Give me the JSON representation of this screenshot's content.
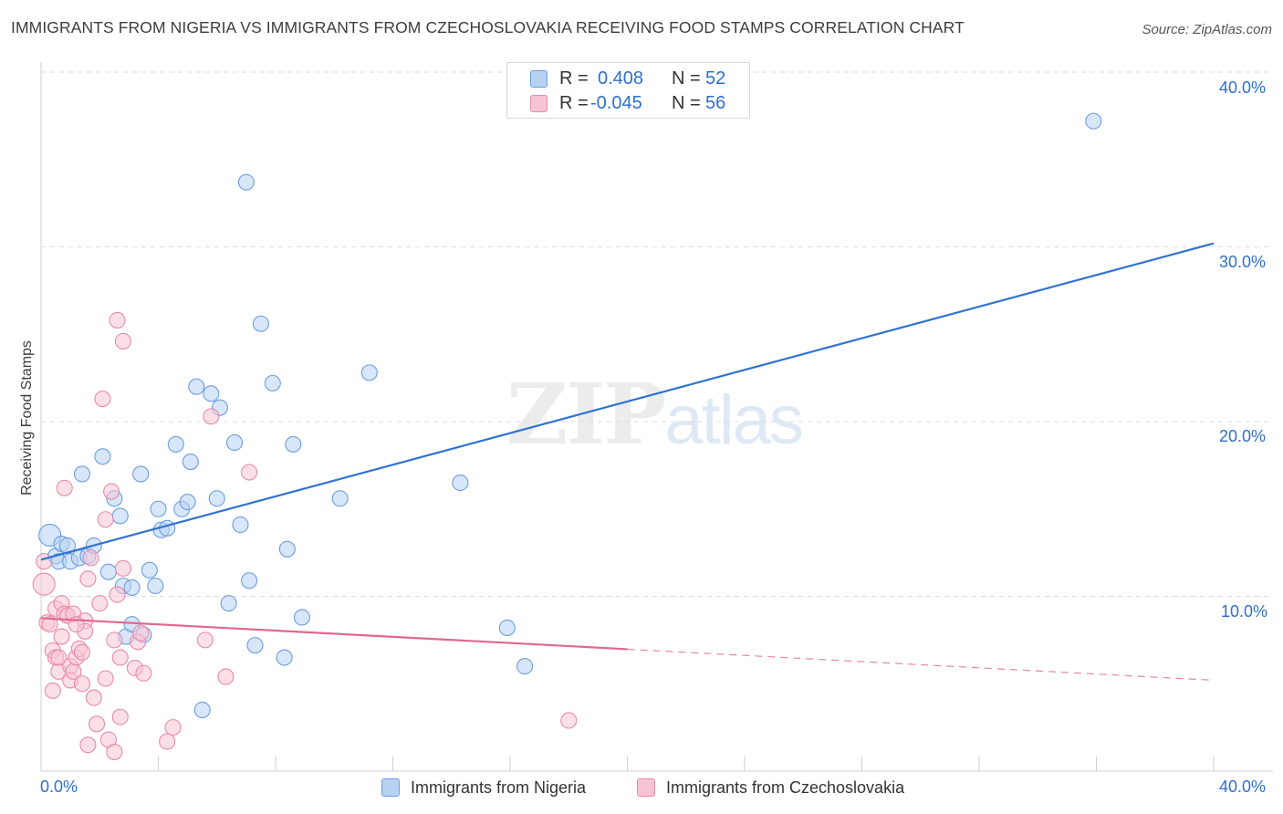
{
  "title": "IMMIGRANTS FROM NIGERIA VS IMMIGRANTS FROM CZECHOSLOVAKIA RECEIVING FOOD STAMPS CORRELATION CHART",
  "source": "Source: ZipAtlas.com",
  "watermark": {
    "zip": "ZIP",
    "atlas": "atlas"
  },
  "legend": {
    "r_label": "R =",
    "n_label": "N =",
    "rows": [
      {
        "r": "0.408",
        "n": "52"
      },
      {
        "r": "-0.045",
        "n": "56"
      }
    ]
  },
  "colors": {
    "nigeria_fill": "#b7d1f3",
    "nigeria_stroke": "#6b9de0",
    "nigeria_line": "#2f72d0",
    "czech_fill": "#f7c4d3",
    "czech_stroke": "#e88aa8",
    "czech_line": "#e0688f"
  },
  "chart_data": {
    "type": "scatter",
    "title": "IMMIGRANTS FROM NIGERIA VS IMMIGRANTS FROM CZECHOSLOVAKIA RECEIVING FOOD STAMPS CORRELATION CHART",
    "xlabel": "",
    "ylabel": "Receiving Food Stamps",
    "xlim": [
      0,
      40
    ],
    "ylim": [
      0,
      40
    ],
    "x_tick_labels": [
      "0.0%",
      "40.0%"
    ],
    "y_ticks": [
      10,
      20,
      30,
      40
    ],
    "y_tick_labels": [
      "10.0%",
      "20.0%",
      "30.0%",
      "40.0%"
    ],
    "legend_position": "top-center",
    "series": [
      {
        "name": "Immigrants from Nigeria",
        "r": 0.408,
        "n": 52,
        "trend": {
          "x": [
            0,
            40
          ],
          "y": [
            12.1,
            30.2
          ],
          "dashed_from": null
        },
        "points": [
          [
            0.3,
            13.5
          ],
          [
            0.5,
            12.3
          ],
          [
            0.6,
            12.0
          ],
          [
            0.7,
            13.0
          ],
          [
            0.9,
            12.9
          ],
          [
            1.0,
            12.0
          ],
          [
            1.3,
            12.2
          ],
          [
            1.4,
            17.0
          ],
          [
            1.6,
            12.3
          ],
          [
            1.8,
            12.9
          ],
          [
            2.1,
            18.0
          ],
          [
            2.3,
            11.4
          ],
          [
            2.5,
            15.6
          ],
          [
            2.7,
            14.6
          ],
          [
            2.8,
            10.6
          ],
          [
            2.9,
            7.7
          ],
          [
            3.1,
            8.4
          ],
          [
            3.1,
            10.5
          ],
          [
            3.4,
            17.0
          ],
          [
            3.5,
            7.8
          ],
          [
            3.7,
            11.5
          ],
          [
            3.9,
            10.6
          ],
          [
            4.0,
            15.0
          ],
          [
            4.1,
            13.8
          ],
          [
            4.3,
            13.9
          ],
          [
            4.6,
            18.7
          ],
          [
            4.8,
            15.0
          ],
          [
            5.0,
            15.4
          ],
          [
            5.1,
            17.7
          ],
          [
            5.3,
            22.0
          ],
          [
            5.5,
            3.5
          ],
          [
            5.8,
            21.6
          ],
          [
            6.0,
            15.6
          ],
          [
            6.1,
            20.8
          ],
          [
            6.4,
            9.6
          ],
          [
            6.6,
            18.8
          ],
          [
            6.8,
            14.1
          ],
          [
            7.0,
            33.7
          ],
          [
            7.1,
            10.9
          ],
          [
            7.3,
            7.2
          ],
          [
            7.5,
            25.6
          ],
          [
            7.9,
            22.2
          ],
          [
            8.3,
            6.5
          ],
          [
            8.4,
            12.7
          ],
          [
            8.6,
            18.7
          ],
          [
            8.9,
            8.8
          ],
          [
            10.2,
            15.6
          ],
          [
            11.2,
            22.8
          ],
          [
            14.3,
            16.5
          ],
          [
            15.9,
            8.2
          ],
          [
            16.5,
            6.0
          ],
          [
            35.9,
            37.2
          ]
        ]
      },
      {
        "name": "Immigrants from Czechoslovakia",
        "r": -0.045,
        "n": 56,
        "trend": {
          "x": [
            0,
            40
          ],
          "y": [
            8.75,
            5.2
          ],
          "dashed_from": 20
        },
        "points": [
          [
            0.1,
            10.7
          ],
          [
            0.1,
            12.0
          ],
          [
            0.2,
            8.5
          ],
          [
            0.3,
            8.4
          ],
          [
            0.4,
            6.9
          ],
          [
            0.5,
            6.5
          ],
          [
            0.5,
            9.3
          ],
          [
            0.6,
            5.7
          ],
          [
            0.6,
            6.5
          ],
          [
            0.7,
            7.7
          ],
          [
            0.7,
            9.6
          ],
          [
            0.8,
            9.0
          ],
          [
            0.8,
            16.2
          ],
          [
            0.9,
            8.9
          ],
          [
            1.0,
            6.0
          ],
          [
            1.0,
            5.2
          ],
          [
            1.1,
            5.7
          ],
          [
            1.1,
            9.0
          ],
          [
            1.2,
            6.5
          ],
          [
            1.3,
            7.0
          ],
          [
            1.4,
            6.8
          ],
          [
            1.4,
            5.0
          ],
          [
            1.5,
            8.6
          ],
          [
            1.5,
            8.0
          ],
          [
            1.6,
            1.5
          ],
          [
            1.6,
            11.0
          ],
          [
            1.7,
            12.2
          ],
          [
            1.8,
            4.2
          ],
          [
            1.9,
            2.7
          ],
          [
            2.0,
            9.6
          ],
          [
            2.1,
            21.3
          ],
          [
            2.2,
            14.4
          ],
          [
            2.2,
            5.3
          ],
          [
            2.3,
            1.8
          ],
          [
            2.4,
            16.0
          ],
          [
            2.5,
            7.5
          ],
          [
            2.5,
            1.1
          ],
          [
            2.6,
            25.8
          ],
          [
            2.6,
            10.1
          ],
          [
            2.7,
            6.5
          ],
          [
            2.7,
            3.1
          ],
          [
            2.8,
            24.6
          ],
          [
            2.8,
            11.6
          ],
          [
            3.2,
            5.9
          ],
          [
            3.3,
            7.4
          ],
          [
            3.4,
            7.9
          ],
          [
            3.5,
            5.6
          ],
          [
            4.3,
            1.7
          ],
          [
            4.5,
            2.5
          ],
          [
            5.6,
            7.5
          ],
          [
            5.8,
            20.3
          ],
          [
            6.3,
            5.4
          ],
          [
            7.1,
            17.1
          ],
          [
            18.0,
            2.9
          ],
          [
            1.2,
            8.4
          ],
          [
            0.4,
            4.6
          ]
        ]
      }
    ]
  },
  "legend_bottom": [
    "Immigrants from Nigeria",
    "Immigrants from Czechoslovakia"
  ]
}
